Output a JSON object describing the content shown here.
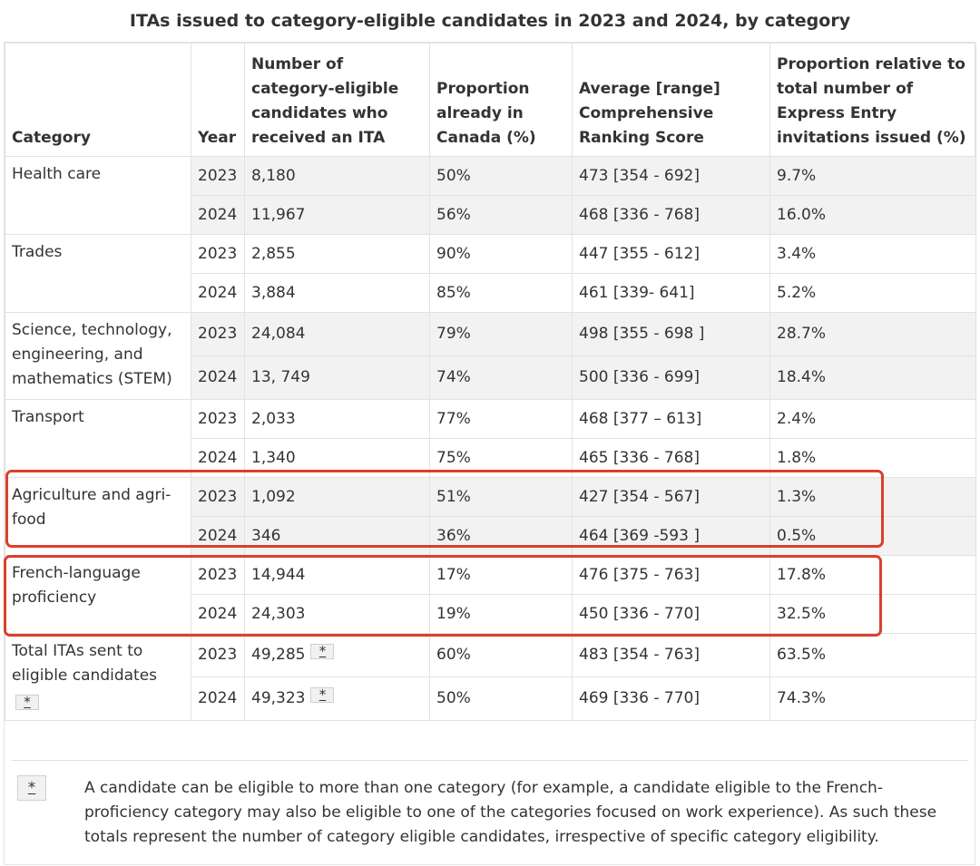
{
  "caption": "ITAs issued to category-eligible candidates in 2023 and 2024, by category",
  "headers": {
    "category": "Category",
    "year": "Year",
    "itas": "Number of category-eligible candidates who received an ITA",
    "in_canada": "Proportion already in Canada (%)",
    "crs": "Average [range] Comprehensive Ranking Score",
    "proportion": "Proportion relative to total number of Express Entry invitations issued (%)"
  },
  "footnote_marker": "*",
  "rows": [
    {
      "category": "Health care",
      "year": "2023",
      "itas": "8,180",
      "in_canada": "50%",
      "crs": "473 [354 - 692]",
      "proportion": "9.7%"
    },
    {
      "year": "2024",
      "itas": "11,967",
      "in_canada": "56%",
      "crs": "468 [336 - 768]",
      "proportion": "16.0%"
    },
    {
      "category": "Trades",
      "year": "2023",
      "itas": "2,855",
      "in_canada": "90%",
      "crs": "447 [355 - 612]",
      "proportion": "3.4%"
    },
    {
      "year": "2024",
      "itas": "3,884",
      "in_canada": "85%",
      "crs": "461 [339- 641]",
      "proportion": "5.2%"
    },
    {
      "category": "Science, technology, engineering, and mathematics (STEM)",
      "year": "2023",
      "itas": "24,084",
      "in_canada": "79%",
      "crs": "498 [355 - 698 ]",
      "proportion": "28.7%"
    },
    {
      "year": "2024",
      "itas": "13, 749",
      "in_canada": "74%",
      "crs": "500 [336 - 699]",
      "proportion": "18.4%"
    },
    {
      "category": "Transport",
      "year": "2023",
      "itas": "2,033",
      "in_canada": "77%",
      "crs": "468 [377 – 613]",
      "proportion": "2.4%"
    },
    {
      "year": "2024",
      "itas": "1,340",
      "in_canada": "75%",
      "crs": "465 [336  - 768]",
      "proportion": "1.8%"
    },
    {
      "category": "Agriculture and agri-food",
      "year": "2023",
      "itas": "1,092",
      "in_canada": "51%",
      "crs": "427 [354 - 567]",
      "proportion": "1.3%"
    },
    {
      "year": "2024",
      "itas": "346",
      "in_canada": "36%",
      "crs": "464 [369 -593 ]",
      "proportion": "0.5%"
    },
    {
      "category": "French-language proficiency",
      "year": "2023",
      "itas": "14,944",
      "in_canada": "17%",
      "crs": "476 [375 - 763]",
      "proportion": "17.8%"
    },
    {
      "year": "2024",
      "itas": "24,303",
      "in_canada": "19%",
      "crs": "450 [336 - 770]",
      "proportion": "32.5%"
    },
    {
      "category": "Total ITAs sent to eligible candidates",
      "year": "2023",
      "itas": "49,285",
      "in_canada": "60%",
      "crs": "483 [354 - 763]",
      "proportion": "63.5%"
    },
    {
      "year": "2024",
      "itas": "49,323",
      "in_canada": "50%",
      "crs": "469 [336 - 770]",
      "proportion": "74.3%"
    }
  ],
  "footnote": "A candidate can be eligible to more than one category (for example, a candidate eligible to the French-proficiency category may also be eligible to one of the categories focused on work experience). As such these totals represent the number of category eligible candidates, irrespective of specific category eligibility.",
  "colors": {
    "highlight": "#d9412b",
    "shade": "#f2f2f2",
    "border": "#e2e2e2"
  }
}
